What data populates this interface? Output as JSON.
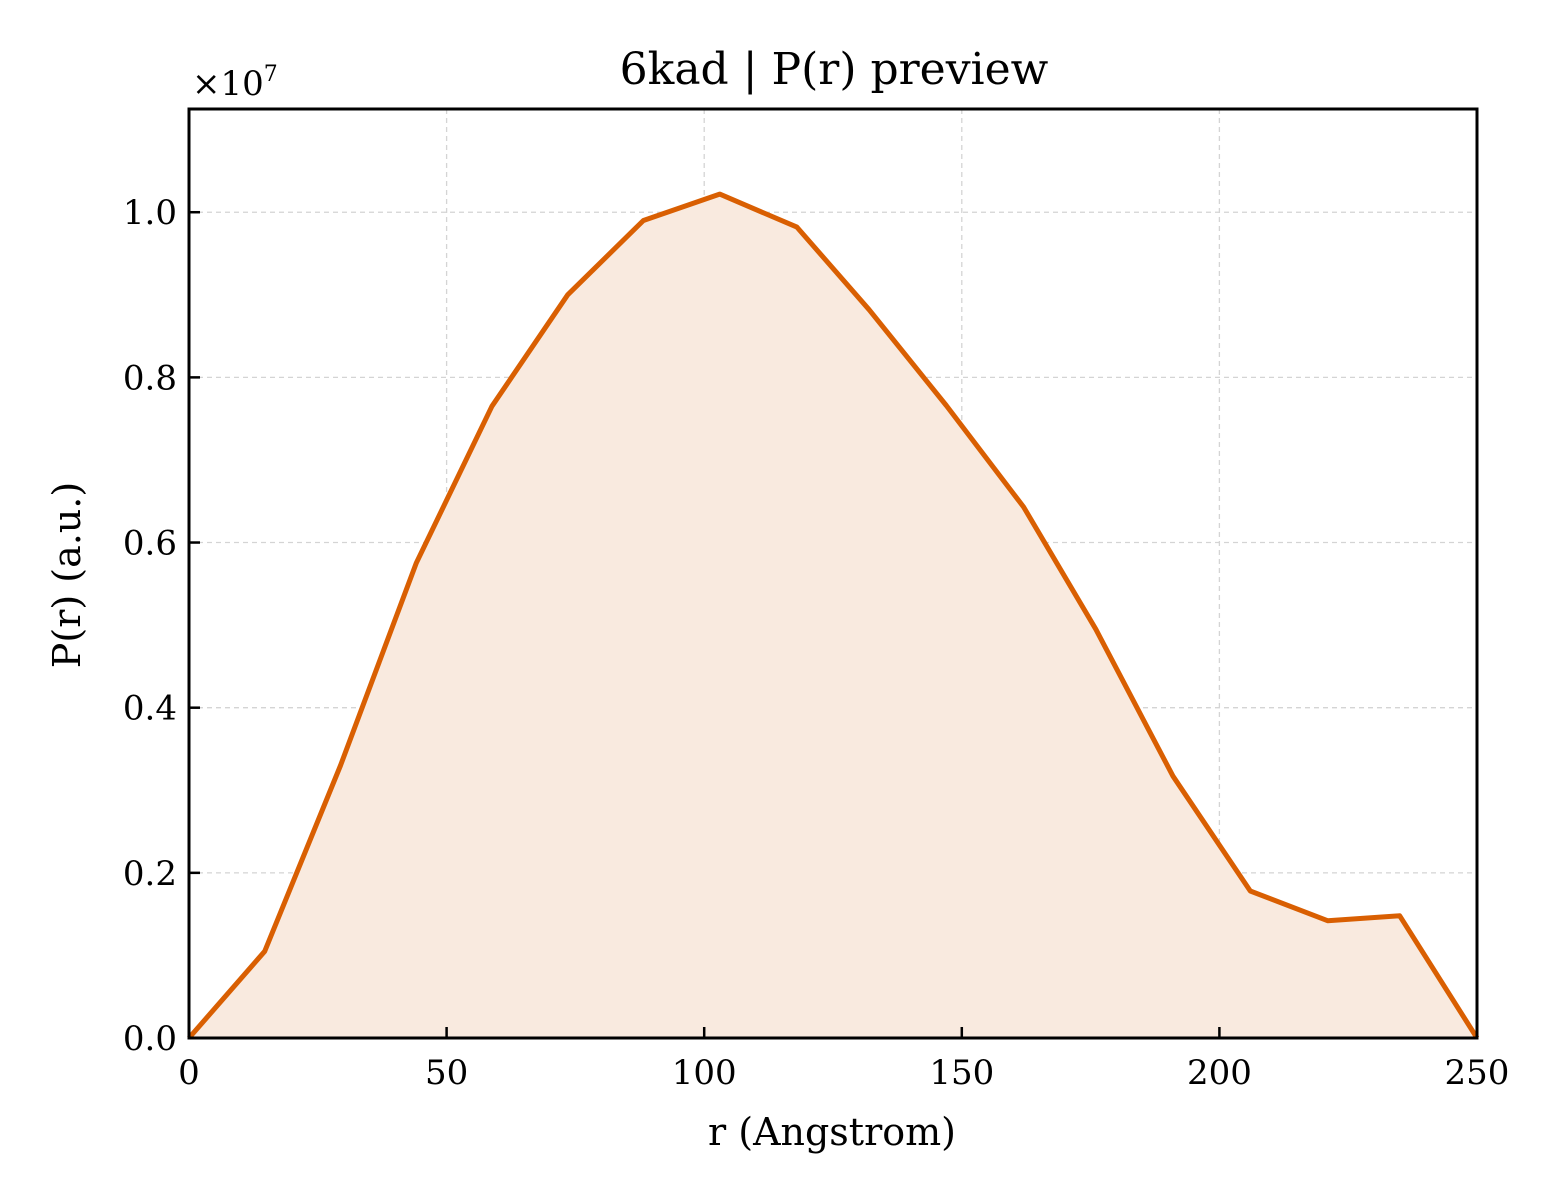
{
  "chart_data": {
    "type": "area",
    "title": "6kad | P(r) preview",
    "xlabel": "r (Angstrom)",
    "ylabel": "P(r) (a.u.)",
    "y_scale_prefix": "×10",
    "y_scale_exponent": "7",
    "xlim": [
      0,
      250
    ],
    "ylim": [
      0,
      1.125
    ],
    "x_ticks": [
      "0",
      "50",
      "100",
      "150",
      "200",
      "250"
    ],
    "y_ticks": [
      "0.0",
      "0.2",
      "0.4",
      "0.6",
      "0.8",
      "1.0"
    ],
    "grid": true,
    "line_color": "#d95f02",
    "fill_color": "#f9eadf",
    "series": [
      {
        "x": [
          0,
          14.7,
          29.4,
          44.1,
          58.8,
          73.5,
          88.2,
          103,
          118,
          132,
          147,
          162,
          176,
          191,
          206,
          221,
          235,
          250
        ],
        "y": [
          0.0,
          0.105,
          0.33,
          0.575,
          0.765,
          0.9,
          0.99,
          1.022,
          0.982,
          0.882,
          0.766,
          0.643,
          0.495,
          0.317,
          0.178,
          0.142,
          0.148,
          0.0
        ]
      }
    ]
  }
}
